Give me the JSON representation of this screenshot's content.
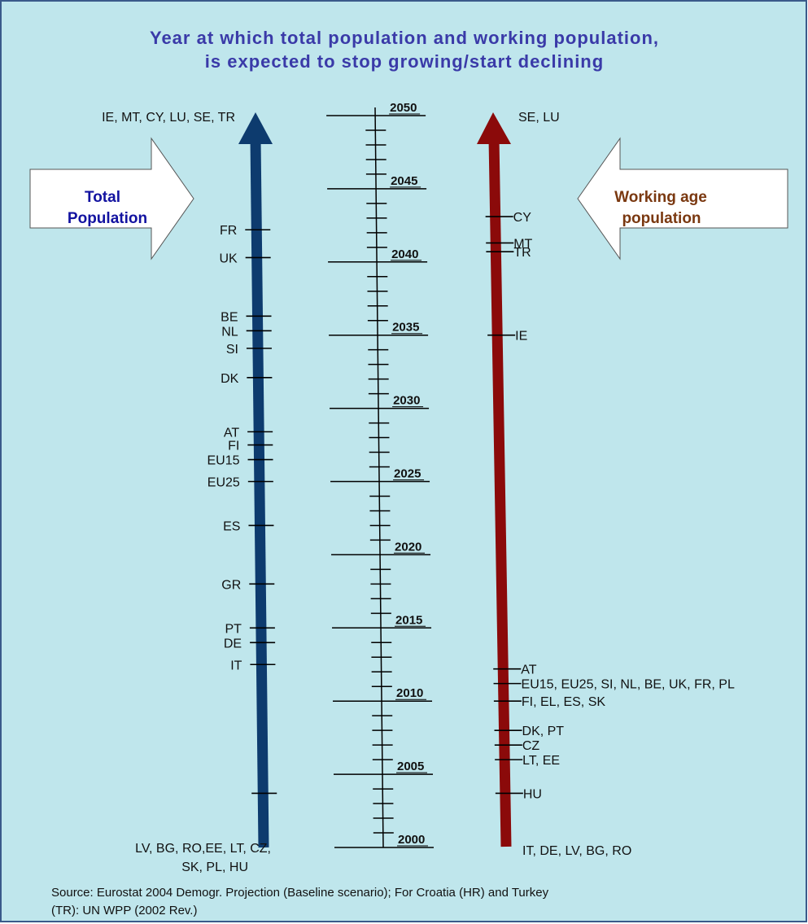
{
  "title": {
    "line1": "Year at which total population and working population,",
    "line2": "is expected to stop growing/start declining"
  },
  "colors": {
    "background": "#bfe6ec",
    "total_arrow": "#0d3b6e",
    "working_arrow": "#8b0a0a",
    "title": "#3a3aa8",
    "total_label": "#1212a0",
    "working_label": "#7a3810"
  },
  "scale": {
    "min_year": 2000,
    "max_year": 2050,
    "major_years": [
      "2000",
      "2005",
      "2010",
      "2015",
      "2020",
      "2025",
      "2030",
      "2035",
      "2040",
      "2045",
      "2050"
    ]
  },
  "total": {
    "box_line1": "Total",
    "box_line2": "Population",
    "top_label": "IE, MT, CY, LU, SE, TR",
    "bottom_line1": "LV, BG, RO,EE, LT, CZ,",
    "bottom_line2": "SK, PL, HU",
    "markers": [
      {
        "label": "FR",
        "year": 2042.2
      },
      {
        "label": "UK",
        "year": 2040.3
      },
      {
        "label": "BE",
        "year": 2036.3
      },
      {
        "label": "NL",
        "year": 2035.3
      },
      {
        "label": "SI",
        "year": 2034.1
      },
      {
        "label": "DK",
        "year": 2032.1
      },
      {
        "label": "AT",
        "year": 2028.4
      },
      {
        "label": "FI",
        "year": 2027.5
      },
      {
        "label": "EU15",
        "year": 2026.5
      },
      {
        "label": "EU25",
        "year": 2025.0
      },
      {
        "label": "ES",
        "year": 2022.0
      },
      {
        "label": "GR",
        "year": 2018.0
      },
      {
        "label": "PT",
        "year": 2015.0
      },
      {
        "label": "DE",
        "year": 2014.0
      },
      {
        "label": "IT",
        "year": 2012.5
      },
      {
        "label": "",
        "year": 2003.7
      }
    ]
  },
  "working": {
    "box_line1": "Working age",
    "box_line2": "population",
    "top_label": "SE, LU",
    "bottom_label": "IT, DE, LV, BG, RO",
    "markers": [
      {
        "label": "CY",
        "year": 2043.1
      },
      {
        "label": "MT",
        "year": 2041.3
      },
      {
        "label": "TR",
        "year": 2040.7
      },
      {
        "label": "IE",
        "year": 2035.0
      },
      {
        "label": "AT",
        "year": 2012.2
      },
      {
        "label": "EU15, EU25, SI, NL, BE, UK, FR, PL",
        "year": 2011.2
      },
      {
        "label": "FI, EL, ES, SK",
        "year": 2010.0
      },
      {
        "label": "DK, PT",
        "year": 2008.0
      },
      {
        "label": "CZ",
        "year": 2007.0
      },
      {
        "label": "LT, EE",
        "year": 2006.0
      },
      {
        "label": "HU",
        "year": 2003.7
      }
    ]
  },
  "source": {
    "line1": "Source: Eurostat 2004 Demogr. Projection (Baseline scenario); For Croatia (HR) and Turkey",
    "line2": "(TR): UN WPP (2002 Rev.)"
  }
}
